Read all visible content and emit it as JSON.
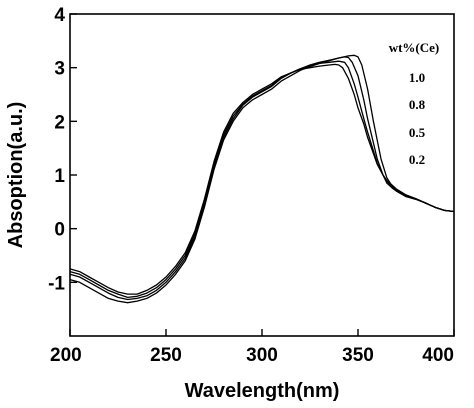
{
  "chart_data": {
    "type": "line",
    "xlabel": "Wavelength(nm)",
    "ylabel": "Absoption(a.u.)",
    "xlim": [
      200,
      400
    ],
    "ylim": [
      -2,
      4
    ],
    "xticks": [
      200,
      250,
      300,
      350,
      400
    ],
    "yticks": [
      -1,
      0,
      1,
      2,
      3,
      4
    ],
    "legend_title": "wt%(Ce)",
    "legend_position": "top-right",
    "grid": false,
    "line_color": "#000000",
    "series": [
      {
        "name": "1.0",
        "x": [
          200,
          205,
          210,
          215,
          220,
          225,
          230,
          235,
          240,
          245,
          250,
          255,
          260,
          265,
          270,
          275,
          280,
          285,
          290,
          295,
          300,
          305,
          310,
          315,
          320,
          325,
          330,
          335,
          340,
          345,
          348,
          350,
          352,
          355,
          358,
          360,
          362,
          365,
          368,
          370,
          375,
          380,
          385,
          390,
          395,
          400
        ],
        "y": [
          -0.95,
          -1.0,
          -1.1,
          -1.2,
          -1.3,
          -1.35,
          -1.38,
          -1.35,
          -1.3,
          -1.2,
          -1.05,
          -0.85,
          -0.6,
          -0.2,
          0.4,
          1.1,
          1.65,
          2.0,
          2.25,
          2.4,
          2.5,
          2.6,
          2.75,
          2.85,
          2.95,
          3.02,
          3.08,
          3.13,
          3.18,
          3.22,
          3.23,
          3.2,
          3.05,
          2.6,
          2.0,
          1.65,
          1.3,
          0.95,
          0.78,
          0.7,
          0.6,
          0.55,
          0.48,
          0.4,
          0.34,
          0.32
        ]
      },
      {
        "name": "0.8",
        "x": [
          200,
          205,
          210,
          215,
          220,
          225,
          230,
          235,
          240,
          245,
          250,
          255,
          260,
          265,
          270,
          275,
          280,
          285,
          290,
          295,
          300,
          305,
          310,
          315,
          320,
          325,
          330,
          335,
          340,
          343,
          345,
          347,
          350,
          353,
          355,
          358,
          360,
          363,
          365,
          368,
          370,
          375,
          380,
          385,
          390,
          395,
          400
        ],
        "y": [
          -0.85,
          -0.9,
          -1.0,
          -1.1,
          -1.2,
          -1.28,
          -1.32,
          -1.3,
          -1.25,
          -1.15,
          -1.0,
          -0.8,
          -0.55,
          -0.15,
          0.45,
          1.15,
          1.7,
          2.05,
          2.3,
          2.45,
          2.55,
          2.65,
          2.8,
          2.9,
          2.98,
          3.05,
          3.1,
          3.14,
          3.18,
          3.2,
          3.19,
          3.1,
          2.85,
          2.4,
          2.05,
          1.6,
          1.3,
          1.0,
          0.85,
          0.75,
          0.7,
          0.6,
          0.55,
          0.48,
          0.4,
          0.34,
          0.32
        ]
      },
      {
        "name": "0.5",
        "x": [
          200,
          205,
          210,
          215,
          220,
          225,
          230,
          235,
          240,
          245,
          250,
          255,
          260,
          265,
          270,
          275,
          280,
          285,
          290,
          295,
          300,
          305,
          310,
          315,
          320,
          325,
          330,
          335,
          340,
          343,
          345,
          348,
          350,
          353,
          355,
          358,
          360,
          363,
          365,
          370,
          375,
          380,
          385,
          390,
          395,
          400
        ],
        "y": [
          -0.8,
          -0.85,
          -0.95,
          -1.05,
          -1.15,
          -1.22,
          -1.28,
          -1.26,
          -1.2,
          -1.1,
          -0.95,
          -0.75,
          -0.5,
          -0.1,
          0.5,
          1.2,
          1.75,
          2.1,
          2.32,
          2.47,
          2.57,
          2.67,
          2.82,
          2.9,
          2.98,
          3.03,
          3.08,
          3.1,
          3.12,
          3.1,
          3.0,
          2.7,
          2.45,
          2.05,
          1.8,
          1.45,
          1.22,
          1.0,
          0.88,
          0.72,
          0.62,
          0.56,
          0.48,
          0.4,
          0.34,
          0.32
        ]
      },
      {
        "name": "0.2",
        "x": [
          200,
          205,
          210,
          215,
          220,
          225,
          230,
          235,
          240,
          245,
          250,
          255,
          260,
          265,
          270,
          275,
          280,
          285,
          290,
          295,
          300,
          305,
          310,
          315,
          320,
          325,
          330,
          335,
          338,
          340,
          342,
          345,
          348,
          350,
          353,
          355,
          358,
          360,
          363,
          365,
          370,
          375,
          380,
          385,
          390,
          395,
          400
        ],
        "y": [
          -0.75,
          -0.8,
          -0.9,
          -1.0,
          -1.1,
          -1.18,
          -1.22,
          -1.22,
          -1.15,
          -1.05,
          -0.9,
          -0.7,
          -0.45,
          -0.05,
          0.55,
          1.25,
          1.8,
          2.15,
          2.35,
          2.5,
          2.6,
          2.7,
          2.83,
          2.9,
          2.97,
          3.0,
          3.03,
          3.05,
          3.06,
          3.05,
          3.0,
          2.8,
          2.5,
          2.25,
          1.95,
          1.7,
          1.4,
          1.2,
          1.0,
          0.9,
          0.74,
          0.63,
          0.56,
          0.48,
          0.4,
          0.34,
          0.32
        ]
      }
    ]
  }
}
